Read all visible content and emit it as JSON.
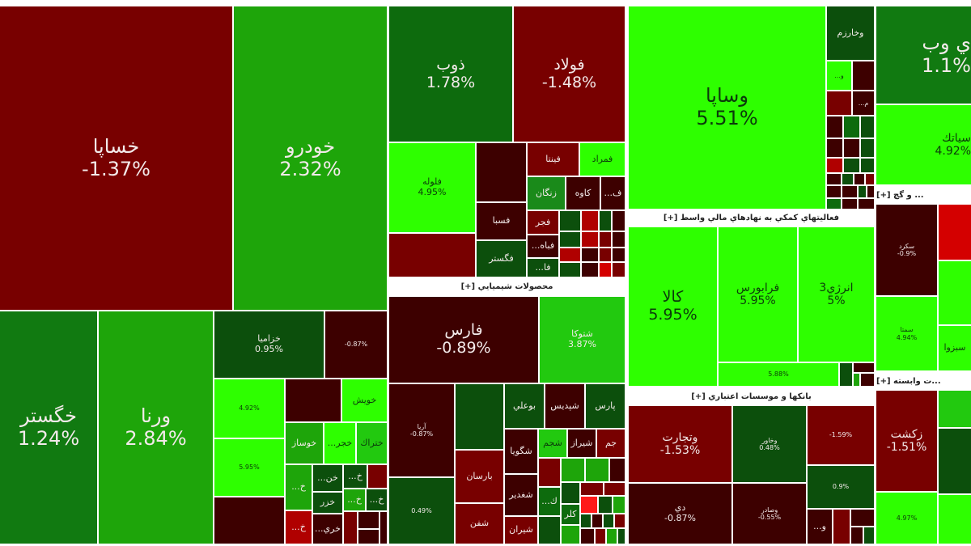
{
  "sections": {
    "banks": "بانکها و موسسات اعتباري [+]",
    "chemicals": "محصولات شيميايي [+]",
    "financial_aux": "فعاليتهاي کمکي به نهادهاي مالي واسط [+]",
    "cement": "... و گچ [+]",
    "affiliated": "...ت وابسته [+]"
  },
  "tiles": {
    "khsapa": {
      "symbol": "خساپا",
      "change": "-1.37%"
    },
    "khodro": {
      "symbol": "خودرو",
      "change": "2.32%"
    },
    "khgostar": {
      "symbol": "خگستر",
      "change": "1.24%"
    },
    "varna": {
      "symbol": "ورنا",
      "change": "2.84%"
    },
    "khazamia": {
      "symbol": "خزاميا",
      "change": "0.95%"
    },
    "auto_a": {
      "change": "-0.87%"
    },
    "auto_b": {
      "change": "4.92%"
    },
    "auto_c": {
      "change": "5.95%"
    },
    "khavish": {
      "symbol": "خويش"
    },
    "khosaz": {
      "symbol": "خوساز"
    },
    "khojr": {
      "symbol": "...خجر"
    },
    "khterak": {
      "symbol": "ختراك"
    },
    "kh1": {
      "symbol": "...خ"
    },
    "khon": {
      "symbol": "...خن"
    },
    "kh2": {
      "symbol": "...خ"
    },
    "khazar": {
      "symbol": "خزر"
    },
    "kh3": {
      "symbol": "...خ"
    },
    "kh4": {
      "symbol": "...خ"
    },
    "kh5": {
      "symbol": "...خ"
    },
    "khari": {
      "symbol": "...خري"
    },
    "zob": {
      "symbol": "ذوب",
      "change": "1.78%"
    },
    "folad": {
      "symbol": "فولاد",
      "change": "-1.48%"
    },
    "foolah": {
      "symbol": "فلوله",
      "change": "4.95%"
    },
    "fesba": {
      "symbol": "فسبا"
    },
    "fgostar": {
      "symbol": "فگستر"
    },
    "fenta": {
      "symbol": "فينتا"
    },
    "fmorad": {
      "symbol": "فمراد"
    },
    "zangan": {
      "symbol": "زنگان"
    },
    "kaveh": {
      "symbol": "كاوه"
    },
    "f1": {
      "symbol": "...ف"
    },
    "fajr": {
      "symbol": "فجر"
    },
    "fbah": {
      "symbol": "...فباه"
    },
    "fa": {
      "symbol": "...فا"
    },
    "fars": {
      "symbol": "فارس",
      "change": "-0.89%"
    },
    "shetoka": {
      "symbol": "شتوكا",
      "change": "3.87%"
    },
    "arya": {
      "symbol": "آريا",
      "change": "-0.87%"
    },
    "chem_a": {
      "change": "0.49%"
    },
    "barsan": {
      "symbol": "بارسان"
    },
    "shafan": {
      "symbol": "شفن"
    },
    "booali": {
      "symbol": "بوعلي"
    },
    "shepdis": {
      "symbol": "شپديس"
    },
    "pars": {
      "symbol": "پارس"
    },
    "shegoya": {
      "symbol": "شگويا"
    },
    "shejam": {
      "symbol": "شجم"
    },
    "shiraz": {
      "symbol": "شيراز"
    },
    "jam": {
      "symbol": "جم"
    },
    "shghadir": {
      "symbol": "شغدير"
    },
    "shiran": {
      "symbol": "شيران"
    },
    "k1": {
      "symbol": "...ك"
    },
    "kalar": {
      "symbol": "كلر"
    },
    "vsapa": {
      "symbol": "وساپا",
      "change": "5.51%"
    },
    "vkharazm": {
      "symbol": "وخارزم"
    },
    "v1": {
      "symbol": "...و"
    },
    "m1": {
      "symbol": "...م"
    },
    "kala": {
      "symbol": "كالا",
      "change": "5.95%"
    },
    "farabourse": {
      "symbol": "فرابورس",
      "change": "5.95%"
    },
    "energy3": {
      "symbol": "انرژي3",
      "change": "5%"
    },
    "fin_a": {
      "change": "5.88%"
    },
    "vtejarat": {
      "symbol": "وتجارت",
      "change": "-1.53%"
    },
    "vkhavar": {
      "symbol": "وخاور",
      "change": "0.48%"
    },
    "bank_a": {
      "change": "-1.59%"
    },
    "bank_b": {
      "change": "0.9%"
    },
    "day": {
      "symbol": "دي",
      "change": "-0.87%"
    },
    "vsader": {
      "symbol": "وصادر",
      "change": "-0.55%"
    },
    "v2": {
      "symbol": "...و"
    },
    "iweb": {
      "symbol": "ي وب",
      "change": "1.1%"
    },
    "siatak": {
      "symbol": "سياتك",
      "change": "4.92%"
    },
    "sekord": {
      "symbol": "سكرد",
      "change": "-0.9%"
    },
    "semta": {
      "symbol": "سمتا",
      "change": "4.94%"
    },
    "sabzva": {
      "symbol": "سبزوا"
    },
    "zekesht": {
      "symbol": "زكشت",
      "change": "-1.51%"
    },
    "aff_a": {
      "change": "4.97%"
    }
  },
  "colors": {
    "strong_loss": "#d40000",
    "loss": "#780000",
    "deep_loss": "#3d0000",
    "gain": "#1ea50a",
    "mild_gain": "#0d6b0d",
    "strong_gain": "#2eff00"
  }
}
